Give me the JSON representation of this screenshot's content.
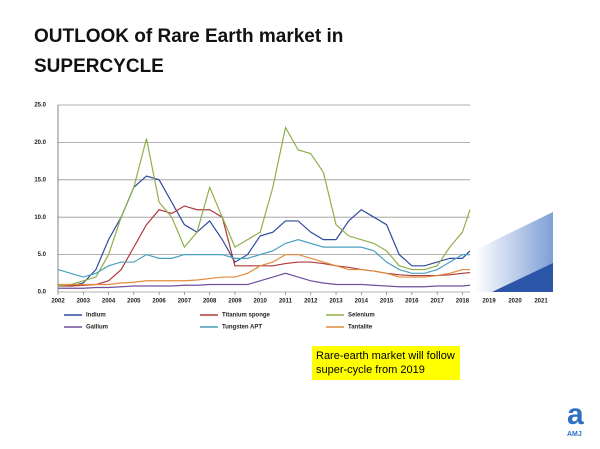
{
  "chart_data": {
    "type": "line",
    "title": "OUTLOOK of Rare Earth market in SUPERCYCLE",
    "x": [
      2002,
      2002.5,
      2003,
      2003.5,
      2004,
      2004.5,
      2005,
      2005.5,
      2006,
      2006.5,
      2007,
      2007.5,
      2008,
      2008.5,
      2009,
      2009.5,
      2010,
      2010.5,
      2011,
      2011.5,
      2012,
      2012.5,
      2013,
      2013.5,
      2014,
      2014.5,
      2015,
      2015.5,
      2016,
      2016.5,
      2017,
      2017.5,
      2018,
      2018.3
    ],
    "series": [
      {
        "name": "Indium",
        "color": "#2e4a9e",
        "values": [
          1.0,
          0.8,
          1.2,
          3,
          7,
          10,
          14,
          15.5,
          15,
          12,
          9,
          8,
          9.5,
          7,
          4,
          5,
          7.5,
          8,
          9.5,
          9.5,
          8,
          7,
          7,
          9.5,
          11,
          10,
          9,
          5,
          3.5,
          3.5,
          4,
          4.5,
          4.5,
          5.5
        ]
      },
      {
        "name": "Titanium sponge",
        "color": "#b03a3a",
        "values": [
          0.8,
          0.8,
          0.9,
          1,
          1.5,
          3,
          6,
          9,
          11,
          10.5,
          11.5,
          11,
          11,
          10,
          3.5,
          3.5,
          3.5,
          3.5,
          3.8,
          4,
          4,
          3.8,
          3.5,
          3.3,
          3,
          2.8,
          2.5,
          2.3,
          2.2,
          2.2,
          2.2,
          2.3,
          2.5,
          2.6
        ]
      },
      {
        "name": "Selenium",
        "color": "#8db04a",
        "values": [
          0.8,
          1,
          1.5,
          2,
          5,
          10,
          14,
          20.5,
          12,
          10,
          6,
          8,
          14,
          10,
          6,
          7,
          8,
          14,
          22,
          19,
          18.5,
          16,
          9,
          7.5,
          7,
          6.5,
          5.5,
          3.5,
          3,
          3,
          3.5,
          6,
          8,
          11
        ]
      },
      {
        "name": "Gallium",
        "color": "#6f4f9e",
        "values": [
          0.5,
          0.5,
          0.5,
          0.6,
          0.6,
          0.7,
          0.8,
          0.8,
          0.8,
          0.8,
          0.9,
          0.9,
          1,
          1,
          1,
          1,
          1.5,
          2,
          2.5,
          2,
          1.5,
          1.2,
          1,
          1,
          1,
          0.9,
          0.8,
          0.7,
          0.7,
          0.7,
          0.8,
          0.8,
          0.8,
          0.9
        ]
      },
      {
        "name": "Tungsten APT",
        "color": "#4aa0c0",
        "values": [
          3,
          2.5,
          2,
          2.5,
          3.5,
          4,
          4,
          5,
          4.5,
          4.5,
          5,
          5,
          5,
          5,
          4.5,
          4.5,
          5,
          5.5,
          6.5,
          7,
          6.5,
          6,
          6,
          6,
          6,
          5.5,
          4,
          3,
          2.5,
          2.5,
          3,
          4,
          5,
          5
        ]
      },
      {
        "name": "Tantalite",
        "color": "#e48a3a",
        "values": [
          1,
          1,
          1,
          1,
          1,
          1.2,
          1.3,
          1.5,
          1.5,
          1.5,
          1.5,
          1.6,
          1.8,
          2,
          2,
          2.5,
          3.5,
          4,
          5,
          5,
          4.5,
          4,
          3.5,
          3,
          3,
          2.8,
          2.5,
          2,
          2,
          2,
          2.2,
          2.5,
          3,
          3
        ]
      }
    ],
    "xlim": [
      2002,
      2018.3
    ],
    "xticks": [
      2002,
      2003,
      2004,
      2005,
      2006,
      2007,
      2008,
      2009,
      2010,
      2011,
      2012,
      2013,
      2014,
      2015,
      2016,
      2017,
      2018
    ],
    "ylim": [
      0,
      25
    ],
    "yticks": [
      {
        "value": 0,
        "label": "0.0"
      },
      {
        "value": 5,
        "label": "5.0"
      },
      {
        "value": 10,
        "label": "10.0"
      },
      {
        "value": 15,
        "label": "15.0"
      },
      {
        "value": 20,
        "label": "20.0"
      },
      {
        "value": 25,
        "label": "25.0"
      }
    ],
    "grid": true,
    "legend": "bottom",
    "forecast_years": [
      "2019",
      "2020",
      "2021"
    ],
    "annotation": "Rare-earth market  will follow super-cycle from 2019"
  },
  "logo": {
    "mark": "a",
    "label": "AMJ"
  }
}
